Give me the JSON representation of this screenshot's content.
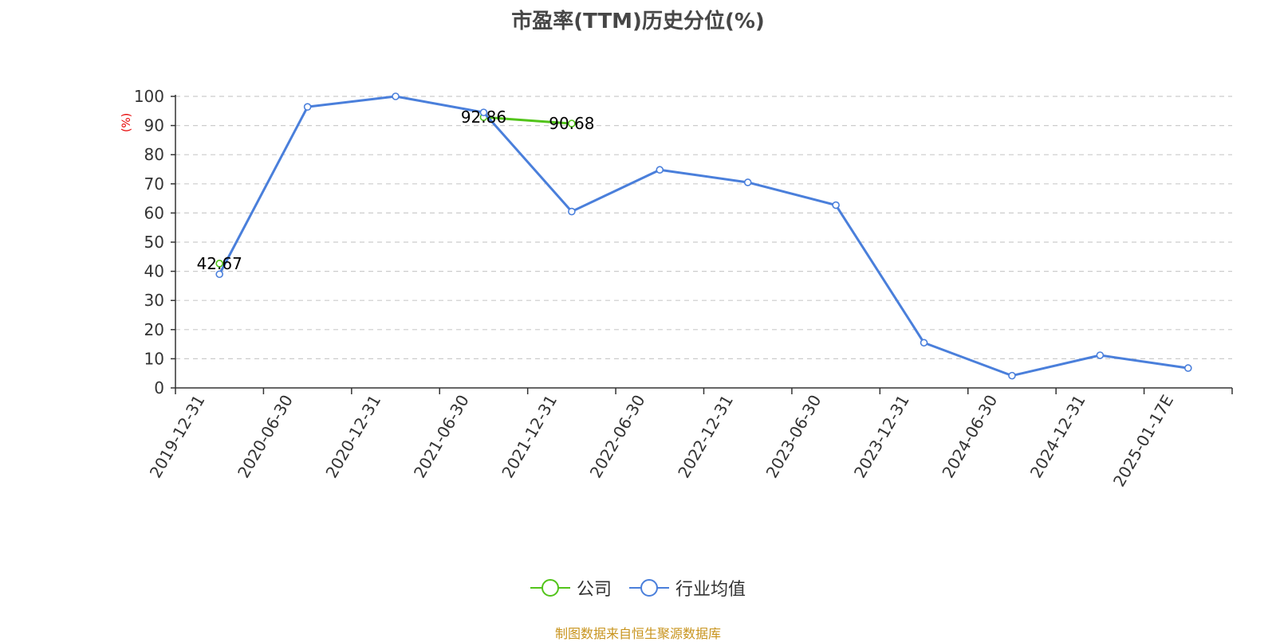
{
  "chart_data": {
    "type": "line",
    "title": "市盈率(TTM)历史分位(%)",
    "ylabel": "(%)",
    "ylabel_color": "#e60000",
    "ylim": [
      0,
      100
    ],
    "yticks": [
      0,
      10,
      20,
      30,
      40,
      50,
      60,
      70,
      80,
      90,
      100
    ],
    "categories": [
      "2019-12-31",
      "2020-06-30",
      "2020-12-31",
      "2021-06-30",
      "2021-12-31",
      "2022-06-30",
      "2022-12-31",
      "2023-06-30",
      "2023-12-31",
      "2024-06-30",
      "2024-12-31",
      "2025-01-17E"
    ],
    "grid": "horizontal-dashed",
    "legend_position": "bottom-center",
    "series": [
      {
        "name": "公司",
        "color": "#52c41a",
        "values": [
          42.67,
          null,
          null,
          92.86,
          90.68,
          null,
          null,
          null,
          null,
          null,
          null,
          null
        ],
        "labels": [
          "42.67",
          null,
          null,
          "92.86",
          "90.68",
          null,
          null,
          null,
          null,
          null,
          null,
          null
        ]
      },
      {
        "name": "行业均值",
        "color": "#4a7fdb",
        "values": [
          39,
          96.4,
          100,
          94.5,
          60.5,
          74.8,
          70.5,
          62.7,
          15.5,
          4.2,
          11.2,
          6.8
        ]
      }
    ]
  },
  "source_note": "制图数据来自恒生聚源数据库"
}
